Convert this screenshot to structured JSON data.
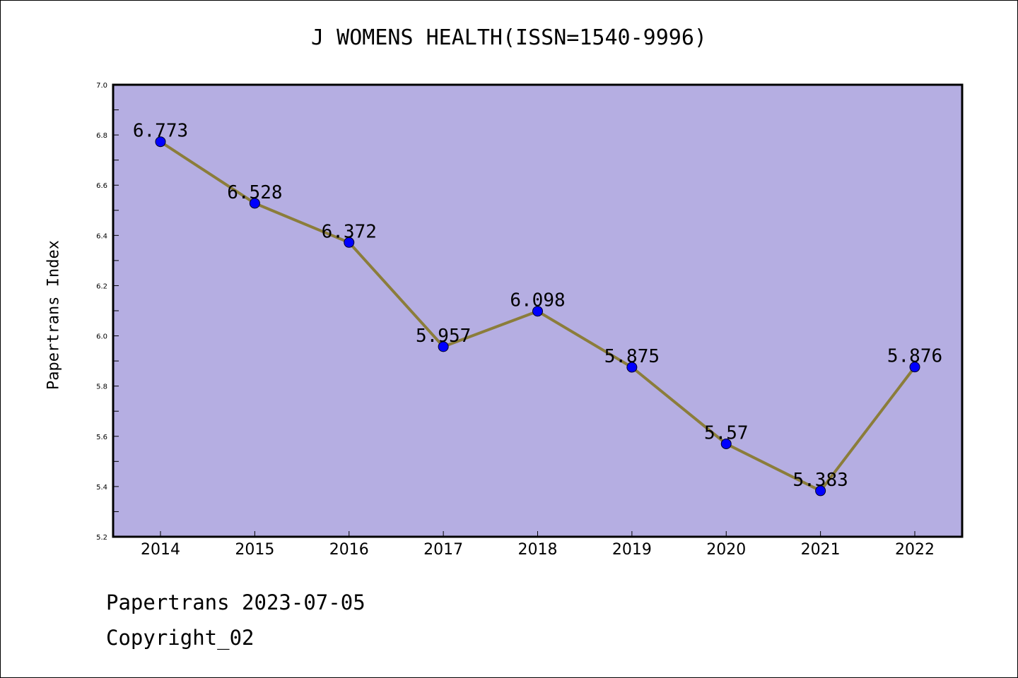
{
  "chart_data": {
    "type": "line",
    "title": "J WOMENS HEALTH(ISSN=1540-9996)",
    "xlabel": "",
    "ylabel": "Papertrans Index",
    "categories": [
      "2014",
      "2015",
      "2016",
      "2017",
      "2018",
      "2019",
      "2020",
      "2021",
      "2022"
    ],
    "values": [
      6.773,
      6.528,
      6.372,
      5.957,
      6.098,
      5.875,
      5.57,
      5.383,
      5.876
    ],
    "data_labels": [
      "6.773",
      "6.528",
      "6.372",
      "5.957",
      "6.098",
      "5.875",
      "5.57",
      "5.383",
      "5.876"
    ],
    "ylim": [
      5.2,
      7.0
    ],
    "yticks": [
      "5.2",
      "5.4",
      "5.6",
      "5.8",
      "6.0",
      "6.2",
      "6.4",
      "6.6",
      "6.8",
      "7.0"
    ],
    "grid": false,
    "colors": {
      "plot_background": "#b5aee2",
      "line": "#8b7d3a",
      "marker": "#0000ff"
    }
  },
  "footer": {
    "line1": "Papertrans 2023-07-05",
    "line2": "Copyright_02"
  }
}
